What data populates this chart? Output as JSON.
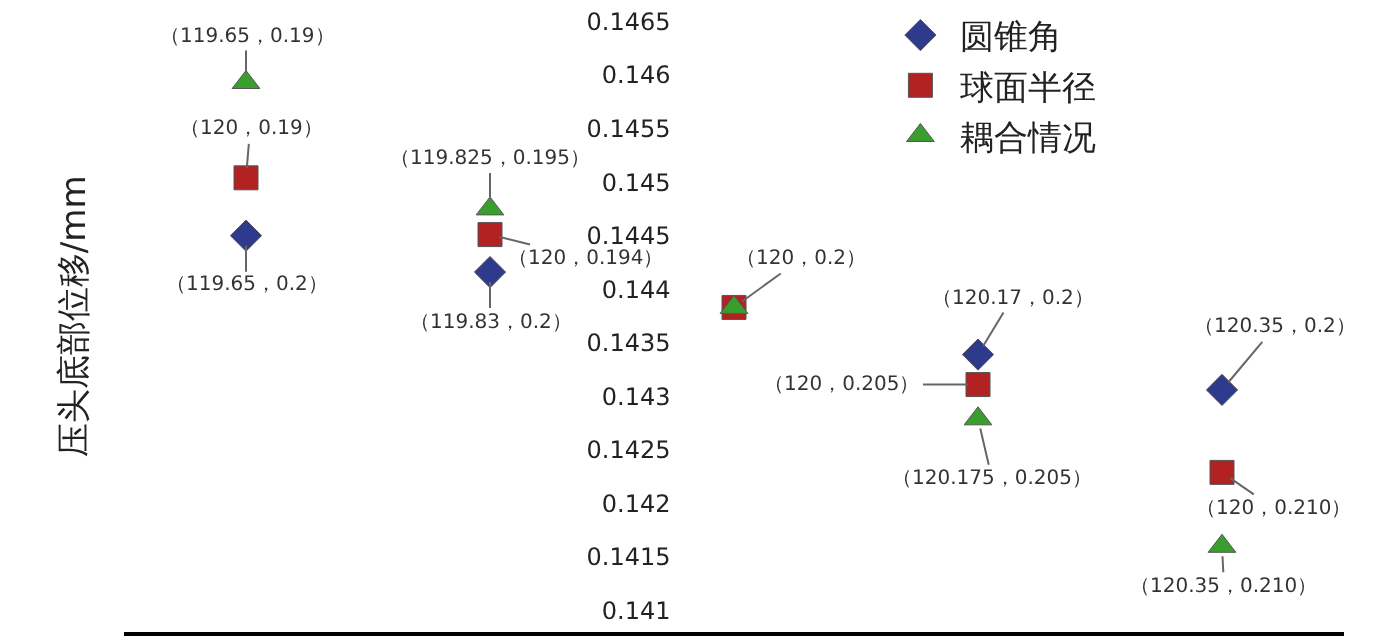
{
  "chart_data": {
    "type": "scatter",
    "ylabel": "压头底部位移/mm",
    "categories": [
      null,
      null,
      null,
      null,
      null
    ],
    "ylim": [
      0.1408,
      0.1467
    ],
    "yticks": [
      0.141,
      0.1415,
      0.142,
      0.1425,
      0.143,
      0.1435,
      0.144,
      0.1445,
      0.145,
      0.1455,
      0.146,
      0.1465
    ],
    "grid": false,
    "legend": "top right",
    "series": [
      {
        "name": "圆锥角",
        "color": "#2e3a8c",
        "marker": "diamond",
        "values": [
          0.1445,
          0.14416,
          null,
          0.14339,
          0.14306
        ],
        "value_labels": [
          "（119.65，0.2）",
          "（119.83，0.2）",
          null,
          "（120.17，0.2）",
          "（120.35，0.2）"
        ]
      },
      {
        "name": "球面半径",
        "color": "#b22222",
        "marker": "square",
        "values": [
          0.14504,
          0.14451,
          0.14383,
          0.14311,
          0.14229
        ],
        "value_labels": [
          "（120，0.19）",
          "（120，0.194）",
          "（120，0.2）",
          "（120，0.205）",
          "（120，0.210）"
        ]
      },
      {
        "name": "耦合情况",
        "color": "#3a9e2e",
        "marker": "triangle",
        "values": [
          0.14593,
          0.14475,
          0.14383,
          0.14279,
          0.1416
        ],
        "value_labels": [
          "（119.65，0.19）",
          "（119.825，0.195）",
          null,
          "（120.175，0.205）",
          "（120.35，0.210）"
        ]
      }
    ]
  }
}
